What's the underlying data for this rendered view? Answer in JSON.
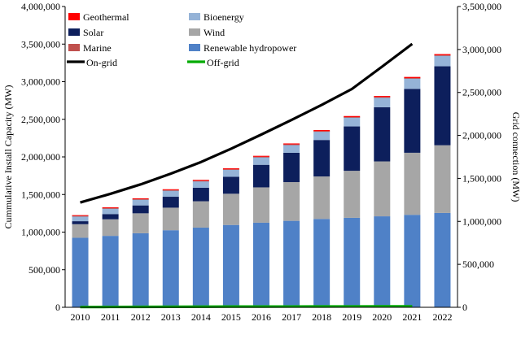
{
  "chart_data": {
    "type": "bar",
    "subtype": "stacked-bar-with-line-overlay",
    "categories": [
      "2010",
      "2011",
      "2012",
      "2013",
      "2014",
      "2015",
      "2016",
      "2017",
      "2018",
      "2019",
      "2020",
      "2021",
      "2022"
    ],
    "ylabel": "Cummulative Install Capacity (MW)",
    "y2label": "Grid connection (MW)",
    "ylim": [
      0,
      4000000
    ],
    "y2lim": [
      0,
      3500000
    ],
    "yticks": [
      0,
      500000,
      1000000,
      1500000,
      2000000,
      2500000,
      3000000,
      3500000,
      4000000
    ],
    "y2ticks": [
      0,
      500000,
      1000000,
      1500000,
      2000000,
      2500000,
      3000000,
      3500000
    ],
    "grid": false,
    "legend_position": "top-left, two columns inside plot",
    "series": [
      {
        "name": "Renewable hydropower",
        "kind": "bar",
        "axis": "left",
        "color": "#4f81c7",
        "values": [
          925000,
          950000,
          985000,
          1025000,
          1060000,
          1095000,
          1125000,
          1150000,
          1175000,
          1190000,
          1210000,
          1230000,
          1255000
        ]
      },
      {
        "name": "Wind",
        "kind": "bar",
        "axis": "left",
        "color": "#a6a6a6",
        "values": [
          180000,
          220000,
          265000,
          300000,
          350000,
          415000,
          470000,
          515000,
          565000,
          625000,
          730000,
          825000,
          900000
        ]
      },
      {
        "name": "Solar",
        "kind": "bar",
        "axis": "left",
        "color": "#0d1f5c",
        "values": [
          40000,
          70000,
          105000,
          145000,
          180000,
          225000,
          300000,
          390000,
          485000,
          590000,
          720000,
          850000,
          1050000
        ]
      },
      {
        "name": "Bioenergy",
        "kind": "bar",
        "axis": "left",
        "color": "#95b3d7",
        "values": [
          70000,
          78000,
          83000,
          88000,
          92000,
          100000,
          106000,
          110000,
          117000,
          124000,
          135000,
          143000,
          147000
        ]
      },
      {
        "name": "Marine",
        "kind": "bar",
        "axis": "left",
        "color": "#c0504d",
        "values": [
          500,
          500,
          500,
          500,
          500,
          500,
          500,
          500,
          500,
          500,
          500,
          500,
          500
        ]
      },
      {
        "name": "Geothermal",
        "kind": "bar",
        "axis": "left",
        "color": "#ff0000",
        "values": [
          10000,
          10500,
          11000,
          11500,
          12000,
          12500,
          13000,
          13500,
          14000,
          14000,
          14500,
          15000,
          15000
        ]
      },
      {
        "name": "On-grid",
        "kind": "line",
        "axis": "right",
        "color": "#000000",
        "values": [
          1220000,
          1320000,
          1430000,
          1555000,
          1690000,
          1845000,
          2010000,
          2180000,
          2355000,
          2540000,
          2800000,
          3065000,
          null
        ]
      },
      {
        "name": "Off-grid",
        "kind": "line",
        "axis": "right",
        "color": "#00aa00",
        "values": [
          3000,
          4000,
          5000,
          6000,
          7000,
          8000,
          8500,
          9000,
          9500,
          10000,
          10500,
          11000,
          null
        ]
      }
    ],
    "legend_order": [
      "Geothermal",
      "Bioenergy",
      "Solar",
      "Wind",
      "Marine",
      "Renewable hydropower",
      "On-grid",
      "Off-grid"
    ]
  }
}
